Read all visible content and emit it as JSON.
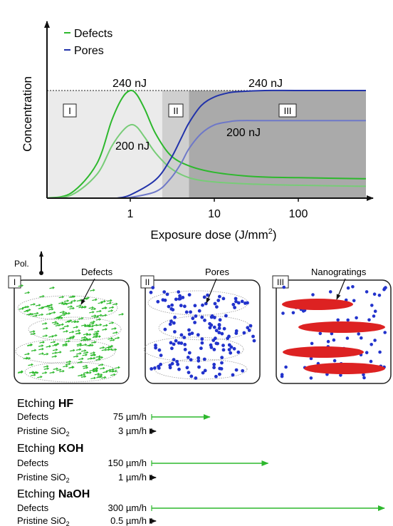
{
  "chart_data": {
    "type": "line",
    "xlabel": "Exposure dose (J/mm",
    "xlabel_sup": "2",
    "xlabel_end": ")",
    "ylabel": "Concentration",
    "x_scale": "log",
    "x_ticks": [
      "1",
      "10",
      "100"
    ],
    "legend_placement": "top-left",
    "legend": [
      {
        "label": "Defects",
        "color": "#2db82d"
      },
      {
        "label": "Pores",
        "color": "#2233aa"
      }
    ],
    "annotations": {
      "defects_high": "240 nJ",
      "defects_low": "200 nJ",
      "pores_high": "240 nJ",
      "pores_low": "200 nJ"
    },
    "regions": [
      "I",
      "II",
      "III"
    ],
    "region_colors": [
      "#ebebeb",
      "#cfcfcf",
      "#aaaaaa"
    ],
    "series": [
      {
        "name": "Defects",
        "energy": "240 nJ",
        "color": "#2db82d",
        "x": [
          0.1,
          0.2,
          0.4,
          0.6,
          0.8,
          1,
          1.2,
          1.5,
          2,
          3,
          5,
          10,
          30,
          100,
          700
        ],
        "y": [
          0.0,
          0.05,
          0.32,
          0.72,
          0.93,
          1.0,
          0.96,
          0.82,
          0.6,
          0.4,
          0.3,
          0.24,
          0.2,
          0.19,
          0.18
        ]
      },
      {
        "name": "Defects",
        "energy": "200 nJ",
        "color": "#77cc77",
        "x": [
          0.1,
          0.2,
          0.4,
          0.6,
          0.8,
          1,
          1.2,
          1.5,
          2,
          3,
          5,
          10,
          30,
          100,
          700
        ],
        "y": [
          0.0,
          0.03,
          0.22,
          0.48,
          0.62,
          0.68,
          0.66,
          0.56,
          0.42,
          0.28,
          0.19,
          0.15,
          0.13,
          0.12,
          0.11
        ]
      },
      {
        "name": "Pores",
        "energy": "240 nJ",
        "color": "#2233aa",
        "x": [
          0.7,
          1,
          2,
          3,
          4,
          5,
          7,
          10,
          15,
          20,
          40,
          100,
          700
        ],
        "y": [
          0.0,
          0.03,
          0.17,
          0.36,
          0.55,
          0.7,
          0.86,
          0.94,
          0.98,
          0.99,
          1.0,
          1.0,
          1.0
        ]
      },
      {
        "name": "Pores",
        "energy": "200 nJ",
        "color": "#6e78c8",
        "x": [
          0.9,
          2,
          3,
          4,
          5,
          7,
          10,
          15,
          20,
          40,
          100,
          700
        ],
        "y": [
          0.0,
          0.06,
          0.18,
          0.32,
          0.46,
          0.6,
          0.68,
          0.71,
          0.72,
          0.72,
          0.72,
          0.72
        ]
      }
    ]
  },
  "polarization_label": "Pol.",
  "panels": [
    {
      "label": "I",
      "annotation": "Defects",
      "kind": "defects"
    },
    {
      "label": "II",
      "annotation": "Pores",
      "kind": "pores"
    },
    {
      "label": "III",
      "annotation": "Nanogratings",
      "kind": "nanogratings"
    }
  ],
  "etching": [
    {
      "prefix": "Etching ",
      "agent": "HF",
      "rows": [
        {
          "label": "Defects",
          "rate": "75 µm/h",
          "color": "#2db82d",
          "value": 75
        },
        {
          "label": "Pristine SiO",
          "sub": "2",
          "rate": "3 µm/h",
          "color": "#111111",
          "value": 3
        }
      ]
    },
    {
      "prefix": "Etching ",
      "agent": "KOH",
      "rows": [
        {
          "label": "Defects",
          "rate": "150 µm/h",
          "color": "#2db82d",
          "value": 150
        },
        {
          "label": "Pristine SiO",
          "sub": "2",
          "rate": "1 µm/h",
          "color": "#111111",
          "value": 1
        }
      ]
    },
    {
      "prefix": "Etching ",
      "agent": "NaOH",
      "rows": [
        {
          "label": "Defects",
          "rate": "300 µm/h",
          "color": "#2db82d",
          "value": 300
        },
        {
          "label": "Pristine SiO",
          "sub": "2",
          "rate": "0.5 µm/h",
          "color": "#111111",
          "value": 0.5
        }
      ]
    }
  ]
}
